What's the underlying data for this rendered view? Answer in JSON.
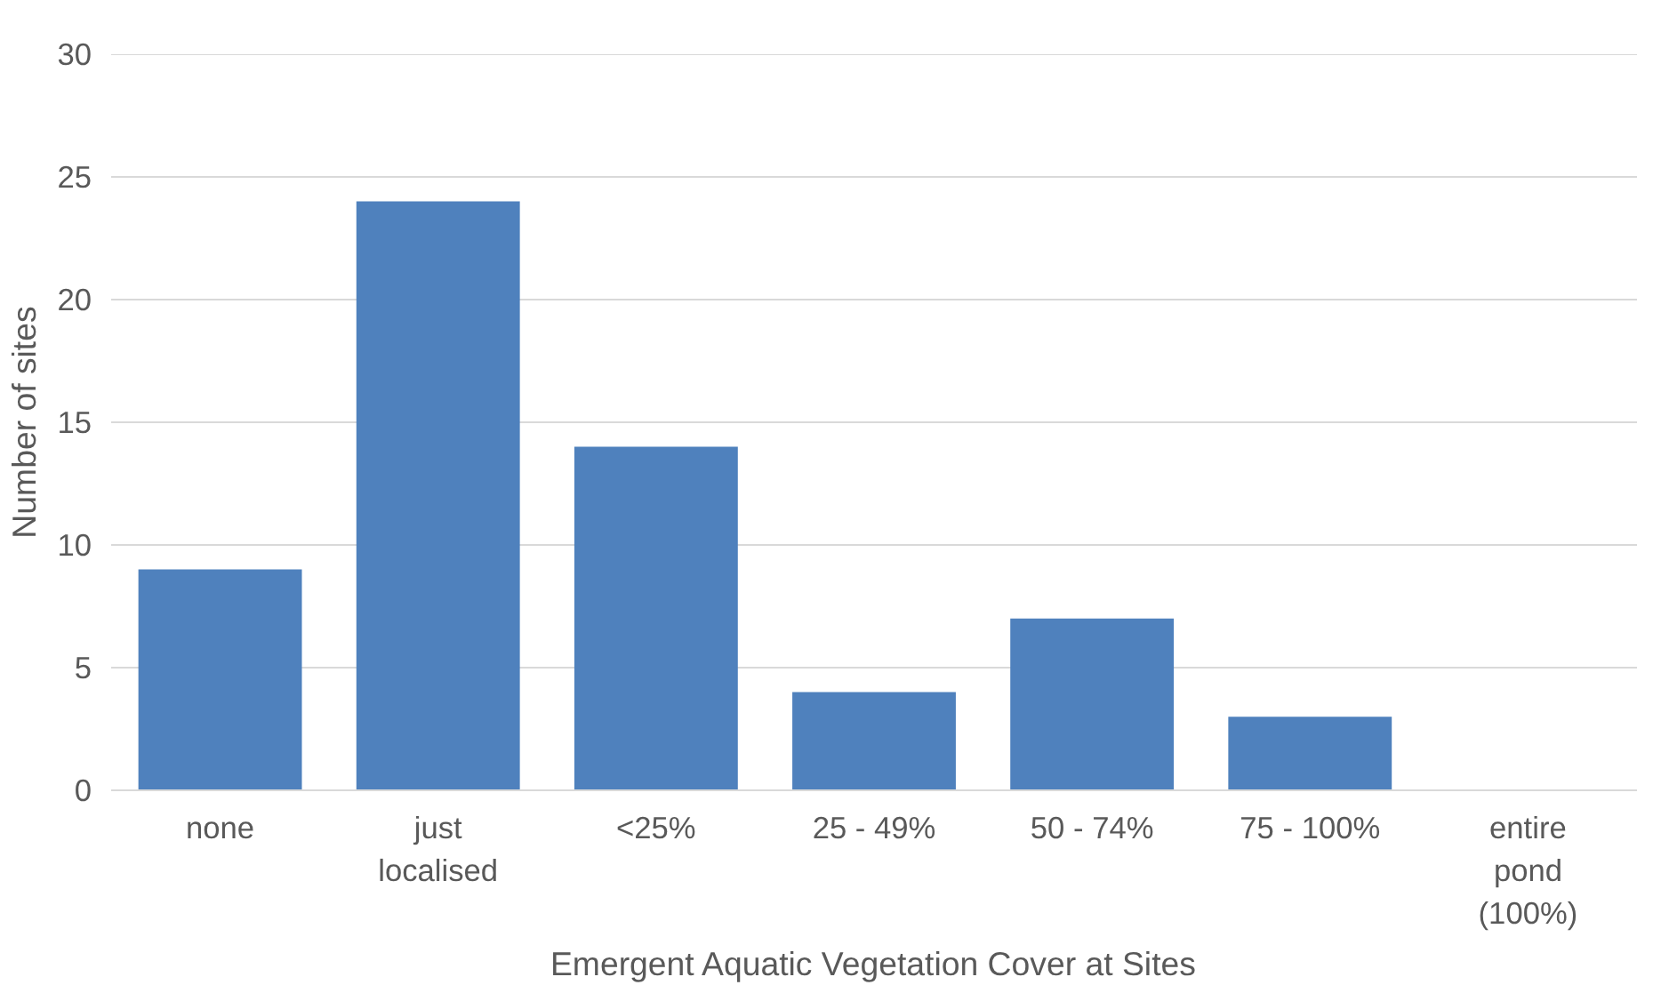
{
  "chart_data": {
    "type": "bar",
    "xlabel": "Emergent Aquatic Vegetation Cover at Sites",
    "ylabel": "Number of sites",
    "categories": [
      "none",
      "just localised",
      "<25%",
      "25 - 49%",
      "50 - 74%",
      "75 - 100%",
      "entire pond (100%)"
    ],
    "values": [
      9,
      24,
      14,
      4,
      7,
      3,
      0
    ],
    "color": "#4f81bd",
    "ylim": [
      0,
      30
    ],
    "yticks": [
      0,
      5,
      10,
      15,
      20,
      25,
      30
    ],
    "grid": "y"
  }
}
